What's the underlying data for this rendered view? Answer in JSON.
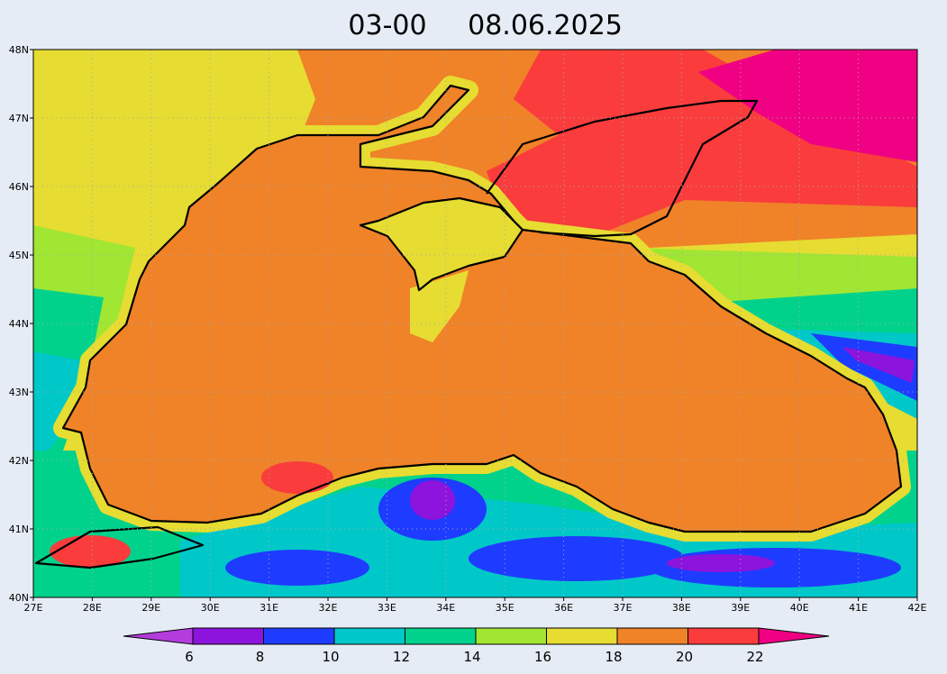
{
  "title": {
    "time": "03-00",
    "date": "08.06.2025"
  },
  "map": {
    "lat_labels": [
      "40N",
      "41N",
      "42N",
      "43N",
      "44N",
      "45N",
      "46N",
      "47N",
      "48N"
    ],
    "lon_labels": [
      "27E",
      "28E",
      "29E",
      "30E",
      "31E",
      "32E",
      "33E",
      "34E",
      "35E",
      "36E",
      "37E",
      "38E",
      "39E",
      "40E",
      "41E",
      "42E"
    ],
    "grid": true
  },
  "colorbar": {
    "labels": [
      6,
      8,
      10,
      12,
      14,
      16,
      18,
      20,
      22
    ],
    "colors": [
      "#b43cdc",
      "#8c14dc",
      "#1e3cff",
      "#00c8c8",
      "#00d28c",
      "#a0e632",
      "#e6dc32",
      "#f08228",
      "#fa3c3c",
      "#f00082"
    ]
  }
}
